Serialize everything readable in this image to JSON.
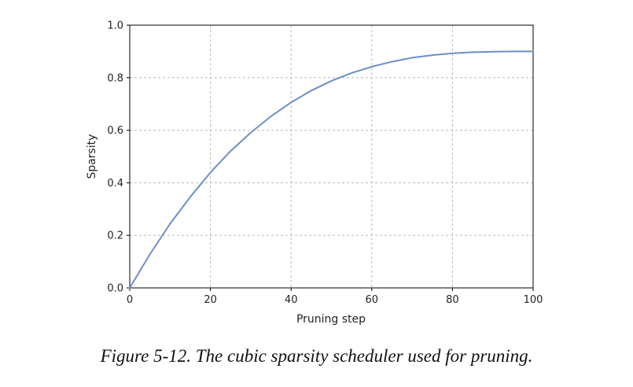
{
  "chart_data": {
    "type": "line",
    "title": "",
    "xlabel": "Pruning step",
    "ylabel": "Sparsity",
    "xlim": [
      0,
      100
    ],
    "ylim": [
      0,
      1.0
    ],
    "xticks": [
      "0",
      "20",
      "40",
      "60",
      "80",
      "100"
    ],
    "yticks": [
      "0.0",
      "0.2",
      "0.4",
      "0.6",
      "0.8",
      "1.0"
    ],
    "grid": true,
    "legend": "none",
    "series": [
      {
        "color": "#6b8fc7",
        "x": [
          0,
          5,
          10,
          15,
          20,
          25,
          30,
          35,
          40,
          45,
          50,
          55,
          60,
          65,
          70,
          75,
          80,
          85,
          90,
          95,
          100
        ],
        "y": [
          0,
          0.128,
          0.244,
          0.346,
          0.439,
          0.521,
          0.591,
          0.653,
          0.706,
          0.751,
          0.788,
          0.818,
          0.842,
          0.861,
          0.876,
          0.886,
          0.893,
          0.897,
          0.899,
          0.9,
          0.9
        ]
      }
    ]
  },
  "caption": "Figure 5-12. The cubic sparsity scheduler used for pruning."
}
